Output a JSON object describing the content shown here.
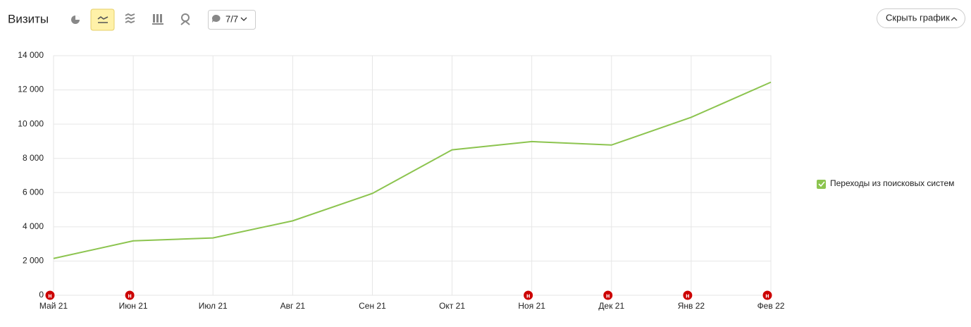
{
  "header": {
    "title": "Визиты",
    "filter_label": "7/7",
    "hide_button": "Скрыть график"
  },
  "chart_data": {
    "type": "line",
    "categories": [
      "Май 21",
      "Июн 21",
      "Июл 21",
      "Авг 21",
      "Сен 21",
      "Окт 21",
      "Ноя 21",
      "Дек 21",
      "Янв 22",
      "Фев 22"
    ],
    "series": [
      {
        "name": "Переходы из поисковых систем",
        "color": "#8cc44f",
        "values": [
          2150,
          3180,
          3350,
          4350,
          5950,
          8500,
          8980,
          8780,
          10400,
          12450
        ]
      }
    ],
    "ylim": [
      0,
      14000
    ],
    "yticks": [
      0,
      {
        "value": 2000,
        "label": "2 000"
      },
      {
        "value": 4000,
        "label": "4 000"
      },
      {
        "value": 6000,
        "label": "6 000"
      },
      {
        "value": 8000,
        "label": "8 000"
      },
      {
        "value": 10000,
        "label": "10 000"
      },
      {
        "value": 12000,
        "label": "12 000"
      },
      {
        "value": 14000,
        "label": "14 000"
      }
    ],
    "grid": true,
    "legend": "right",
    "events": [
      {
        "x": "Май 21",
        "label": "н"
      },
      {
        "x": "Июн 21",
        "label": "н"
      },
      {
        "x": "Ноя 21",
        "label": "н"
      },
      {
        "x": "Дек 21",
        "label": "н"
      },
      {
        "x": "Янв 22",
        "label": "н"
      },
      {
        "x": "Фев 22",
        "label": "н"
      }
    ]
  }
}
